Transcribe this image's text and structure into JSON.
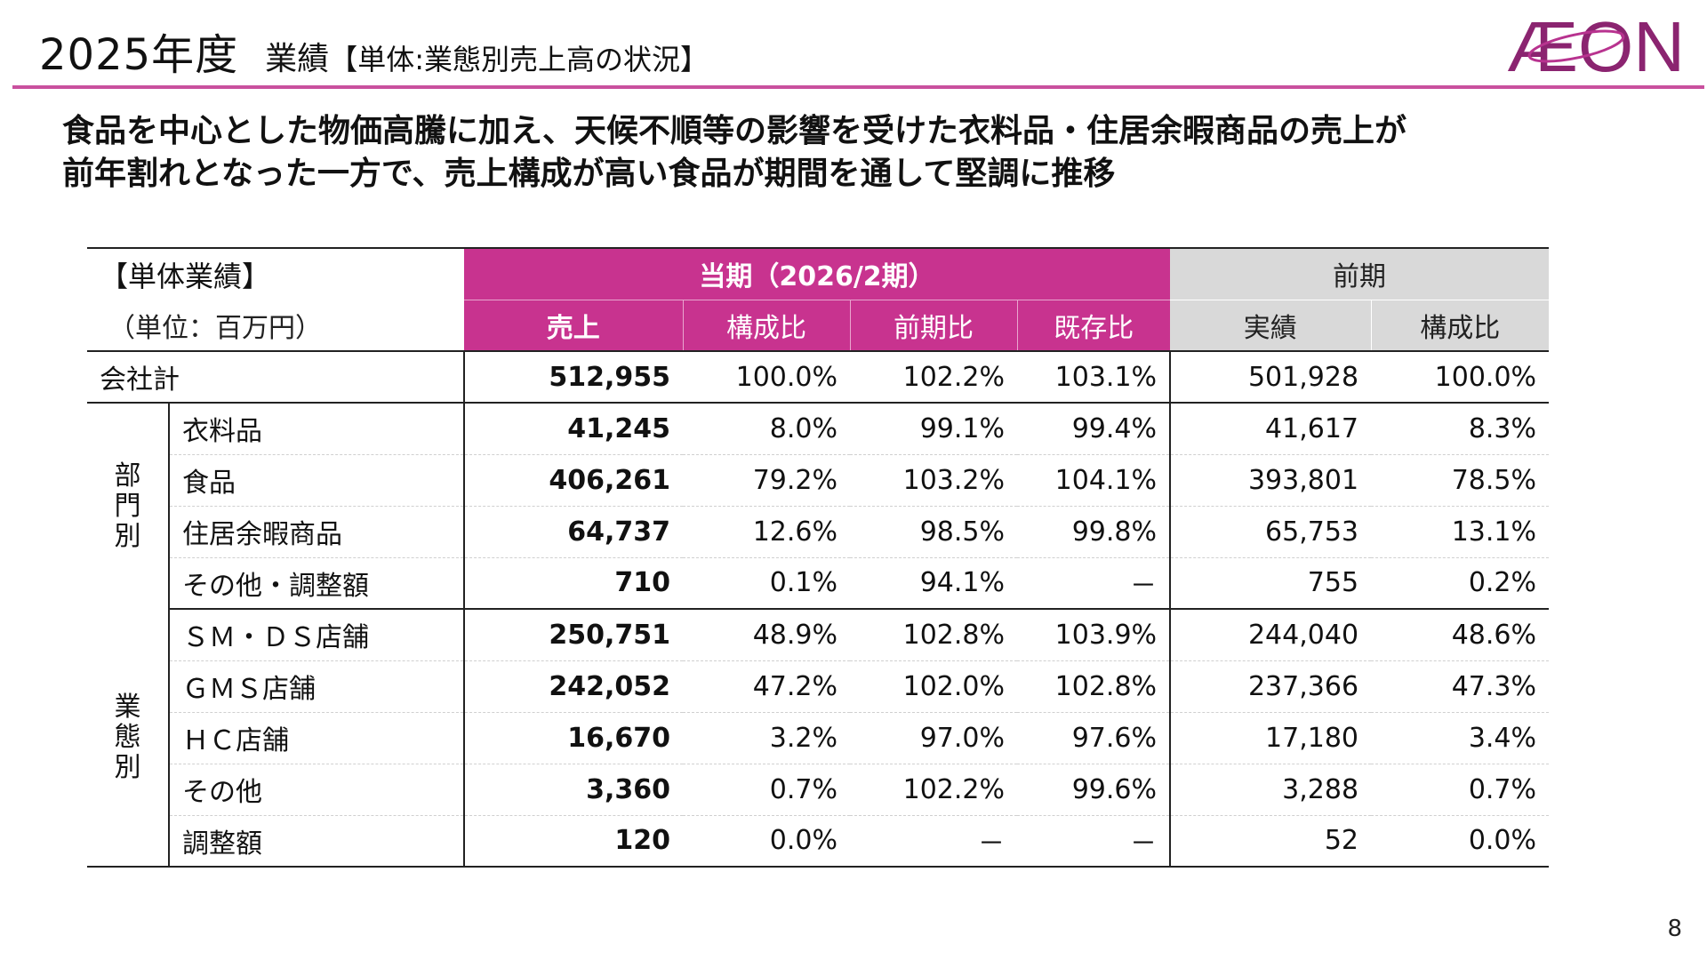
{
  "title": {
    "main": "2025年度",
    "sub": "業績",
    "sub_bracket": "【単体:業態別売上高の状況】"
  },
  "logo": {
    "text": "ÆON",
    "brand_color": "#8b2470"
  },
  "headline": {
    "line1": "食品を中心とした物価高騰に加え、天候不順等の影響を受けた衣料品・住居余暇商品の売上が",
    "line2": "前年割れとなった一方で、売上構成が高い食品が期間を通して堅調に推移"
  },
  "table": {
    "corner_title": "【単体業績】",
    "unit": "（単位：百万円）",
    "current_period": "当期（2026/2期）",
    "prior_period": "前期",
    "columns": {
      "sales": "売上",
      "share": "構成比",
      "yoy": "前期比",
      "same_store": "既存比",
      "prior_actual": "実績",
      "prior_share": "構成比"
    },
    "total": {
      "label": "会社計",
      "sales": "512,955",
      "share": "100.0%",
      "yoy": "102.2%",
      "same_store": "103.1%",
      "prior_actual": "501,928",
      "prior_share": "100.0%"
    },
    "group1_label": [
      "部",
      "門",
      "別"
    ],
    "group1": [
      {
        "label": "衣料品",
        "sales": "41,245",
        "share": "8.0%",
        "yoy": "99.1%",
        "same_store": "99.4%",
        "prior_actual": "41,617",
        "prior_share": "8.3%"
      },
      {
        "label": "食品",
        "sales": "406,261",
        "share": "79.2%",
        "yoy": "103.2%",
        "same_store": "104.1%",
        "prior_actual": "393,801",
        "prior_share": "78.5%"
      },
      {
        "label": "住居余暇商品",
        "sales": "64,737",
        "share": "12.6%",
        "yoy": "98.5%",
        "same_store": "99.8%",
        "prior_actual": "65,753",
        "prior_share": "13.1%"
      },
      {
        "label": "その他・調整額",
        "sales": "710",
        "share": "0.1%",
        "yoy": "94.1%",
        "same_store": "－",
        "prior_actual": "755",
        "prior_share": "0.2%"
      }
    ],
    "group2_label": [
      "業",
      "態",
      "別"
    ],
    "group2": [
      {
        "label": "ＳＭ・ＤＳ店舗",
        "sales": "250,751",
        "share": "48.9%",
        "yoy": "102.8%",
        "same_store": "103.9%",
        "prior_actual": "244,040",
        "prior_share": "48.6%"
      },
      {
        "label": "ＧＭＳ店舗",
        "sales": "242,052",
        "share": "47.2%",
        "yoy": "102.0%",
        "same_store": "102.8%",
        "prior_actual": "237,366",
        "prior_share": "47.3%"
      },
      {
        "label": "ＨＣ店舗",
        "sales": "16,670",
        "share": "3.2%",
        "yoy": "97.0%",
        "same_store": "97.6%",
        "prior_actual": "17,180",
        "prior_share": "3.4%"
      },
      {
        "label": "その他",
        "sales": "3,360",
        "share": "0.7%",
        "yoy": "102.2%",
        "same_store": "99.6%",
        "prior_actual": "3,288",
        "prior_share": "0.7%"
      },
      {
        "label": "調整額",
        "sales": "120",
        "share": "0.0%",
        "yoy": "－",
        "same_store": "－",
        "prior_actual": "52",
        "prior_share": "0.0%"
      }
    ]
  },
  "page_number": "8",
  "colors": {
    "accent": "#c8338f",
    "rule": "#c9509e",
    "prior_header": "#d9d9d9"
  }
}
